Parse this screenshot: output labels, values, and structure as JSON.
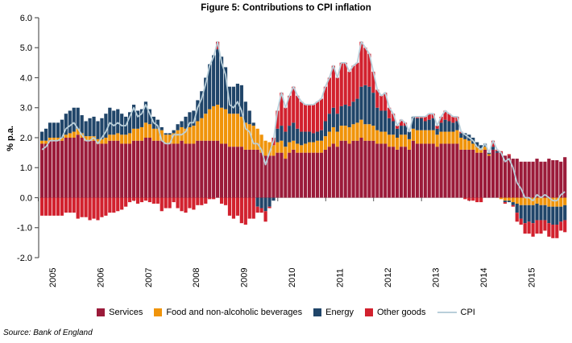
{
  "page": {
    "title": "Figure 5: Contributions to CPI inflation",
    "source": "Source: Bank of England",
    "y_axis_label": "% p.a."
  },
  "chart_data": {
    "type": "bar",
    "variant": "stacked-monthly-bars-with-line-overlay",
    "title": "Figure 5: Contributions to CPI inflation",
    "xlabel": "",
    "ylabel": "% p.a.",
    "ylim": [
      -2.0,
      6.0
    ],
    "ytick_labels": [
      "6.0",
      "5.0",
      "4.0",
      "3.0",
      "2.0",
      "1.0",
      "0.0",
      "-1.0",
      "-2.0"
    ],
    "year_labels": [
      "2005",
      "2006",
      "2007",
      "2008",
      "2009",
      "2010",
      "2011",
      "2012",
      "2013",
      "2014",
      "2015"
    ],
    "months_per_year": 12,
    "grid": false,
    "legend_position": "bottom",
    "series": [
      {
        "name": "Services",
        "color": "#9B1B3A",
        "values": [
          1.8,
          1.8,
          1.9,
          1.9,
          1.9,
          1.9,
          2.0,
          2.0,
          2.0,
          2.1,
          2.0,
          1.9,
          1.9,
          1.9,
          1.8,
          1.8,
          1.8,
          1.9,
          1.9,
          1.9,
          1.8,
          1.8,
          1.8,
          1.9,
          1.9,
          1.9,
          2.0,
          2.0,
          1.9,
          1.9,
          1.9,
          1.8,
          1.8,
          1.8,
          1.8,
          1.9,
          1.8,
          1.8,
          1.8,
          1.9,
          1.9,
          1.9,
          1.9,
          1.9,
          1.9,
          1.8,
          1.8,
          1.7,
          1.7,
          1.7,
          1.7,
          1.6,
          1.6,
          1.6,
          1.6,
          1.5,
          1.4,
          1.4,
          1.4,
          1.5,
          1.5,
          1.3,
          1.5,
          1.6,
          1.5,
          1.5,
          1.5,
          1.5,
          1.5,
          1.5,
          1.5,
          1.6,
          1.7,
          1.8,
          1.7,
          1.9,
          1.9,
          1.8,
          1.9,
          1.9,
          2.0,
          1.9,
          1.9,
          1.9,
          1.8,
          1.8,
          1.8,
          1.7,
          1.7,
          1.6,
          1.7,
          1.7,
          1.6,
          1.9,
          1.8,
          1.8,
          1.8,
          1.8,
          1.8,
          1.7,
          1.8,
          1.8,
          1.8,
          1.8,
          1.8,
          1.6,
          1.6,
          1.6,
          1.6,
          1.5,
          1.5,
          1.6,
          1.4,
          1.6,
          1.5,
          1.5,
          1.4,
          1.4,
          1.3,
          1.3,
          1.2,
          1.2,
          1.2,
          1.2,
          1.3,
          1.2,
          1.2,
          1.3,
          1.25,
          1.25,
          1.2,
          1.35
        ]
      },
      {
        "name": "Food and non-alcoholic beverages",
        "color": "#F0940A",
        "values": [
          0.1,
          0.1,
          0.1,
          0.1,
          0.1,
          0.1,
          0.1,
          0.15,
          0.2,
          0.2,
          0.15,
          0.15,
          0.15,
          0.15,
          0.15,
          0.15,
          0.2,
          0.2,
          0.2,
          0.25,
          0.3,
          0.3,
          0.35,
          0.4,
          0.4,
          0.45,
          0.5,
          0.45,
          0.4,
          0.4,
          0.35,
          0.3,
          0.3,
          0.35,
          0.45,
          0.45,
          0.5,
          0.55,
          0.6,
          0.65,
          0.75,
          0.9,
          1.05,
          1.15,
          1.2,
          1.2,
          1.15,
          1.1,
          1.1,
          1.1,
          1.0,
          0.9,
          0.85,
          0.8,
          0.7,
          0.6,
          0.5,
          0.45,
          0.35,
          0.35,
          0.4,
          0.4,
          0.35,
          0.3,
          0.3,
          0.25,
          0.3,
          0.35,
          0.35,
          0.4,
          0.4,
          0.45,
          0.5,
          0.55,
          0.5,
          0.5,
          0.5,
          0.55,
          0.55,
          0.6,
          0.6,
          0.55,
          0.55,
          0.5,
          0.45,
          0.4,
          0.4,
          0.4,
          0.4,
          0.4,
          0.4,
          0.4,
          0.35,
          0.4,
          0.45,
          0.45,
          0.45,
          0.45,
          0.45,
          0.4,
          0.4,
          0.4,
          0.4,
          0.4,
          0.45,
          0.4,
          0.35,
          0.3,
          0.2,
          0.2,
          0.15,
          0.1,
          0.05,
          0.0,
          0.0,
          -0.05,
          -0.1,
          -0.1,
          -0.15,
          -0.2,
          -0.25,
          -0.25,
          -0.25,
          -0.25,
          -0.2,
          -0.25,
          -0.25,
          -0.3,
          -0.3,
          -0.3,
          -0.3,
          -0.25
        ]
      },
      {
        "name": "Energy",
        "color": "#204569",
        "values": [
          0.3,
          0.4,
          0.5,
          0.5,
          0.5,
          0.6,
          0.7,
          0.75,
          0.8,
          0.7,
          0.6,
          0.5,
          0.6,
          0.65,
          0.6,
          0.7,
          0.8,
          0.9,
          0.8,
          0.8,
          0.7,
          0.6,
          0.7,
          0.8,
          0.6,
          0.6,
          0.7,
          0.5,
          0.4,
          0.3,
          0.1,
          0.05,
          0.05,
          0.1,
          0.2,
          0.2,
          0.4,
          0.5,
          0.5,
          0.7,
          0.9,
          1.2,
          1.5,
          1.7,
          1.85,
          1.7,
          1.4,
          0.9,
          0.9,
          1.0,
          1.05,
          0.7,
          0.45,
          0.1,
          -0.3,
          -0.35,
          -0.45,
          -0.3,
          -0.1,
          0.45,
          0.5,
          0.5,
          0.55,
          0.6,
          0.5,
          0.45,
          0.4,
          0.35,
          0.3,
          0.3,
          0.35,
          0.5,
          0.6,
          0.65,
          0.6,
          0.65,
          0.7,
          0.7,
          0.75,
          0.8,
          1.1,
          1.3,
          1.25,
          1.1,
          0.75,
          0.7,
          0.7,
          0.55,
          0.45,
          0.3,
          0.3,
          0.3,
          0.25,
          0.4,
          0.4,
          0.4,
          0.3,
          0.35,
          0.4,
          0.2,
          0.3,
          0.4,
          0.35,
          0.3,
          0.3,
          0.15,
          0.2,
          0.2,
          0.2,
          0.15,
          0.1,
          0.1,
          0.05,
          0.1,
          0.05,
          0.0,
          -0.05,
          -0.05,
          -0.1,
          -0.3,
          -0.45,
          -0.6,
          -0.55,
          -0.6,
          -0.55,
          -0.5,
          -0.5,
          -0.55,
          -0.6,
          -0.6,
          -0.5,
          -0.5
        ]
      },
      {
        "name": "Other goods",
        "color": "#D2212E",
        "values": [
          -0.6,
          -0.6,
          -0.6,
          -0.6,
          -0.6,
          -0.6,
          -0.5,
          -0.5,
          -0.5,
          -0.7,
          -0.65,
          -0.65,
          -0.75,
          -0.7,
          -0.75,
          -0.65,
          -0.6,
          -0.5,
          -0.5,
          -0.45,
          -0.4,
          -0.3,
          -0.15,
          -0.1,
          -0.2,
          -0.15,
          -0.1,
          -0.15,
          -0.2,
          -0.2,
          -0.45,
          -0.35,
          -0.35,
          -0.15,
          -0.35,
          -0.45,
          -0.5,
          -0.35,
          -0.4,
          -0.25,
          -0.25,
          -0.2,
          -0.05,
          -0.05,
          0.25,
          -0.2,
          -0.25,
          -0.6,
          -0.7,
          -0.6,
          -0.85,
          -0.9,
          -0.7,
          -0.7,
          -0.2,
          -0.15,
          -0.35,
          -0.05,
          0.25,
          0.6,
          1.1,
          0.8,
          1.0,
          1.2,
          1.1,
          1.0,
          0.9,
          0.9,
          0.95,
          1.0,
          1.05,
          1.15,
          1.2,
          1.4,
          1.2,
          1.45,
          1.4,
          1.15,
          1.2,
          1.2,
          1.5,
          1.25,
          1.1,
          0.7,
          0.6,
          0.5,
          0.6,
          0.35,
          0.25,
          0.1,
          0.2,
          0.1,
          0.0,
          0.0,
          0.05,
          0.05,
          0.15,
          0.2,
          0.15,
          0.1,
          0.2,
          0.3,
          0.25,
          0.2,
          0.15,
          0.05,
          -0.05,
          -0.1,
          -0.1,
          -0.15,
          -0.15,
          0.0,
          0.0,
          0.2,
          0.05,
          0.05,
          -0.05,
          0.05,
          -0.05,
          -0.3,
          -0.2,
          -0.35,
          -0.4,
          -0.45,
          -0.45,
          -0.45,
          -0.35,
          -0.45,
          -0.45,
          -0.45,
          -0.3,
          -0.4
        ]
      }
    ],
    "line_series": {
      "name": "CPI",
      "color": "#B9CFDA",
      "values": [
        1.6,
        1.7,
        1.9,
        1.9,
        1.9,
        2.0,
        2.3,
        2.4,
        2.5,
        2.3,
        2.1,
        1.9,
        1.9,
        2.0,
        1.8,
        2.0,
        2.2,
        2.5,
        2.4,
        2.5,
        2.4,
        2.4,
        2.7,
        3.0,
        2.7,
        2.8,
        3.1,
        2.8,
        2.5,
        2.4,
        1.9,
        1.8,
        1.8,
        2.1,
        2.1,
        2.1,
        2.2,
        2.5,
        2.5,
        3.0,
        3.3,
        3.8,
        4.4,
        4.7,
        5.2,
        4.5,
        4.1,
        3.1,
        3.0,
        3.2,
        2.9,
        2.3,
        2.2,
        1.8,
        1.8,
        1.6,
        1.1,
        1.5,
        1.9,
        2.9,
        3.5,
        3.0,
        3.4,
        3.7,
        3.4,
        3.2,
        3.1,
        3.1,
        3.1,
        3.2,
        3.3,
        3.7,
        4.0,
        4.4,
        4.0,
        4.5,
        4.5,
        4.2,
        4.4,
        4.5,
        5.2,
        5.0,
        4.8,
        4.2,
        3.6,
        3.4,
        3.5,
        3.0,
        2.8,
        2.4,
        2.6,
        2.5,
        2.2,
        2.7,
        2.7,
        2.7,
        2.7,
        2.8,
        2.8,
        2.4,
        2.7,
        2.9,
        2.8,
        2.7,
        2.7,
        2.2,
        2.1,
        2.0,
        1.9,
        1.7,
        1.6,
        1.8,
        1.5,
        1.9,
        1.6,
        1.5,
        1.2,
        1.3,
        1.0,
        0.5,
        0.3,
        0.0,
        0.0,
        -0.1,
        0.1,
        0.0,
        0.1,
        0.0,
        -0.1,
        -0.1,
        0.1,
        0.2
      ]
    },
    "axis_color": "#595959",
    "zero_line_color": "#c8c8c8"
  }
}
